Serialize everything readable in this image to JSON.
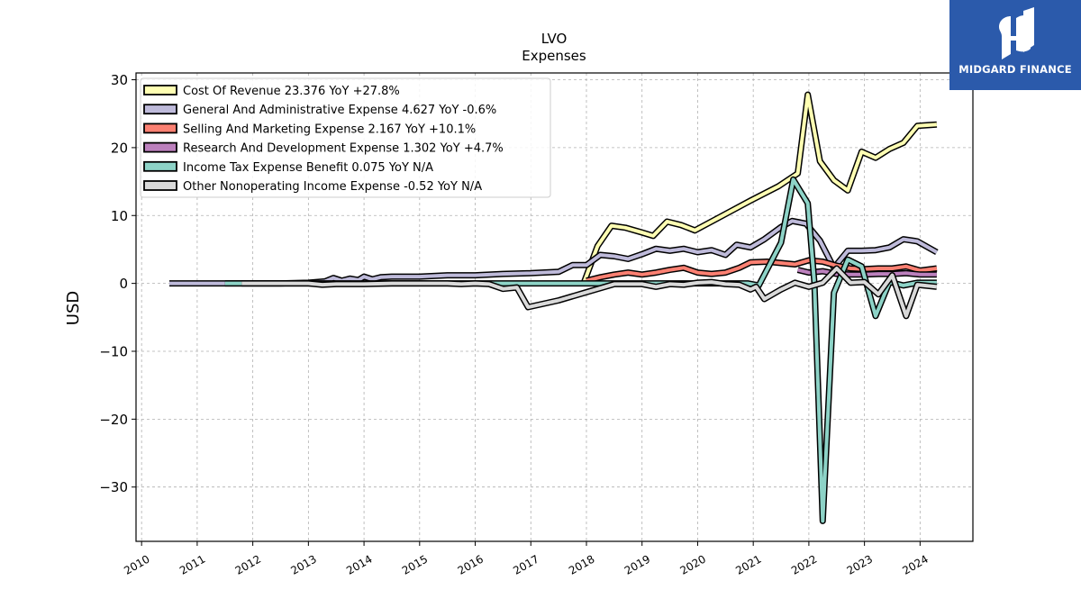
{
  "brand": {
    "name": "MIDGARD FINANCE",
    "color": "#2b5aab"
  },
  "chart_data": {
    "type": "line",
    "title": "LVO",
    "subtitle": "Expenses",
    "ylabel": "USD",
    "xlabel": "",
    "ylim": [
      -38,
      31
    ],
    "xlim": [
      2009.9,
      2024.95
    ],
    "grid": true,
    "legend_position": "top-left",
    "yticks": [
      -30,
      -20,
      -10,
      0,
      10,
      20,
      30
    ],
    "ytick_labels": [
      "−30",
      "−20",
      "−10",
      "0",
      "10",
      "20",
      "30"
    ],
    "xticks": [
      2010,
      2011,
      2012,
      2013,
      2014,
      2015,
      2016,
      2017,
      2018,
      2019,
      2020,
      2021,
      2022,
      2023,
      2024
    ],
    "xtick_labels": [
      "2010",
      "2011",
      "2012",
      "2013",
      "2014",
      "2015",
      "2016",
      "2017",
      "2018",
      "2019",
      "2020",
      "2021",
      "2022",
      "2023",
      "2024"
    ],
    "series": [
      {
        "name": "Cost Of Revenue",
        "legend": "Cost Of Revenue  23.376 YoY +27.8%",
        "color": "#ffffb3",
        "points": [
          [
            2017.95,
            0
          ],
          [
            2018.2,
            5.5
          ],
          [
            2018.45,
            8.5
          ],
          [
            2018.7,
            8.2
          ],
          [
            2019.0,
            7.5
          ],
          [
            2019.2,
            7.0
          ],
          [
            2019.45,
            9.1
          ],
          [
            2019.7,
            8.6
          ],
          [
            2019.95,
            7.8
          ],
          [
            2020.45,
            10.0
          ],
          [
            2020.95,
            12.2
          ],
          [
            2021.45,
            14.3
          ],
          [
            2021.8,
            16.2
          ],
          [
            2021.98,
            27.8
          ],
          [
            2022.2,
            18.0
          ],
          [
            2022.45,
            15.2
          ],
          [
            2022.7,
            13.7
          ],
          [
            2022.95,
            19.4
          ],
          [
            2023.2,
            18.5
          ],
          [
            2023.45,
            19.8
          ],
          [
            2023.7,
            20.7
          ],
          [
            2023.95,
            23.2
          ],
          [
            2024.3,
            23.4
          ]
        ]
      },
      {
        "name": "General And Administrative Expense",
        "legend": "General And Administrative Expense  4.627 YoY -0.6%",
        "color": "#bebada",
        "points": [
          [
            2010.5,
            0
          ],
          [
            2011.0,
            0
          ],
          [
            2011.5,
            0
          ],
          [
            2012.0,
            0
          ],
          [
            2012.5,
            0
          ],
          [
            2013.0,
            0.1
          ],
          [
            2013.3,
            0.3
          ],
          [
            2013.45,
            0.8
          ],
          [
            2013.6,
            0.4
          ],
          [
            2013.75,
            0.7
          ],
          [
            2013.9,
            0.5
          ],
          [
            2014.0,
            1.0
          ],
          [
            2014.15,
            0.6
          ],
          [
            2014.3,
            0.9
          ],
          [
            2014.5,
            1.0
          ],
          [
            2015.0,
            1.0
          ],
          [
            2015.5,
            1.2
          ],
          [
            2016.0,
            1.2
          ],
          [
            2016.5,
            1.4
          ],
          [
            2017.0,
            1.5
          ],
          [
            2017.5,
            1.7
          ],
          [
            2017.75,
            2.7
          ],
          [
            2018.0,
            2.7
          ],
          [
            2018.25,
            4.2
          ],
          [
            2018.5,
            4.0
          ],
          [
            2018.75,
            3.6
          ],
          [
            2019.0,
            4.3
          ],
          [
            2019.25,
            5.1
          ],
          [
            2019.5,
            4.8
          ],
          [
            2019.75,
            5.1
          ],
          [
            2020.0,
            4.6
          ],
          [
            2020.25,
            4.9
          ],
          [
            2020.5,
            4.2
          ],
          [
            2020.7,
            5.7
          ],
          [
            2020.95,
            5.3
          ],
          [
            2021.2,
            6.5
          ],
          [
            2021.5,
            8.3
          ],
          [
            2021.7,
            9.2
          ],
          [
            2021.95,
            8.8
          ],
          [
            2022.2,
            6.3
          ],
          [
            2022.45,
            2.3
          ],
          [
            2022.7,
            4.8
          ],
          [
            2022.95,
            4.8
          ],
          [
            2023.2,
            4.9
          ],
          [
            2023.45,
            5.3
          ],
          [
            2023.7,
            6.5
          ],
          [
            2023.95,
            6.2
          ],
          [
            2024.3,
            4.6
          ]
        ]
      },
      {
        "name": "Selling And Marketing Expense",
        "legend": "Selling And Marketing Expense  2.167 YoY +10.1%",
        "color": "#fb8072",
        "points": [
          [
            2018.0,
            0.4
          ],
          [
            2018.25,
            0.9
          ],
          [
            2018.5,
            1.3
          ],
          [
            2018.75,
            1.6
          ],
          [
            2019.0,
            1.3
          ],
          [
            2019.25,
            1.6
          ],
          [
            2019.5,
            2.0
          ],
          [
            2019.75,
            2.3
          ],
          [
            2020.0,
            1.6
          ],
          [
            2020.25,
            1.4
          ],
          [
            2020.5,
            1.6
          ],
          [
            2020.75,
            2.3
          ],
          [
            2020.95,
            3.1
          ],
          [
            2021.25,
            3.2
          ],
          [
            2021.5,
            3.0
          ],
          [
            2021.75,
            2.8
          ],
          [
            2022.0,
            3.4
          ],
          [
            2022.25,
            3.2
          ],
          [
            2022.5,
            2.6
          ],
          [
            2022.75,
            2.2
          ],
          [
            2023.0,
            2.1
          ],
          [
            2023.25,
            2.2
          ],
          [
            2023.5,
            2.2
          ],
          [
            2023.75,
            2.5
          ],
          [
            2024.0,
            1.9
          ],
          [
            2024.3,
            2.2
          ]
        ]
      },
      {
        "name": "Research And Development Expense",
        "legend": "Research And Development Expense  1.302 YoY +4.7%",
        "color": "#bc80bd",
        "points": [
          [
            2021.8,
            2.0
          ],
          [
            2022.0,
            1.6
          ],
          [
            2022.25,
            1.8
          ],
          [
            2022.5,
            1.4
          ],
          [
            2022.75,
            1.3
          ],
          [
            2023.0,
            1.3
          ],
          [
            2023.25,
            1.4
          ],
          [
            2023.5,
            1.4
          ],
          [
            2023.75,
            1.5
          ],
          [
            2024.0,
            1.3
          ],
          [
            2024.3,
            1.3
          ]
        ]
      },
      {
        "name": "Income Tax Expense Benefit",
        "legend": "Income Tax Expense Benefit  0.075 YoY N/A",
        "color": "#8dd3c7",
        "points": [
          [
            2011.5,
            0
          ],
          [
            2011.75,
            0
          ],
          [
            2012.0,
            0
          ],
          [
            2016.0,
            0
          ],
          [
            2017.0,
            0
          ],
          [
            2018.0,
            0
          ],
          [
            2019.0,
            0
          ],
          [
            2020.0,
            0
          ],
          [
            2020.5,
            0
          ],
          [
            2020.9,
            0
          ],
          [
            2021.1,
            -0.3
          ],
          [
            2021.5,
            6.0
          ],
          [
            2021.72,
            15.3
          ],
          [
            2021.98,
            11.8
          ],
          [
            2022.1,
            0
          ],
          [
            2022.25,
            -35.0
          ],
          [
            2022.45,
            -1.4
          ],
          [
            2022.7,
            3.5
          ],
          [
            2022.95,
            2.5
          ],
          [
            2023.2,
            -4.8
          ],
          [
            2023.45,
            0.2
          ],
          [
            2023.7,
            -0.3
          ],
          [
            2023.95,
            0.1
          ],
          [
            2024.3,
            0.1
          ]
        ]
      },
      {
        "name": "Other Nonoperating Income Expense",
        "legend": "Other Nonoperating Income Expense  -0.52 YoY N/A",
        "color": "#d9d9d9",
        "points": [
          [
            2011.8,
            0
          ],
          [
            2012.5,
            0
          ],
          [
            2013.0,
            0
          ],
          [
            2013.25,
            -0.2
          ],
          [
            2013.5,
            -0.1
          ],
          [
            2014.0,
            -0.1
          ],
          [
            2014.5,
            0
          ],
          [
            2015.0,
            0
          ],
          [
            2015.5,
            0
          ],
          [
            2015.75,
            -0.1
          ],
          [
            2016.0,
            0
          ],
          [
            2016.25,
            -0.1
          ],
          [
            2016.5,
            -0.8
          ],
          [
            2016.75,
            -0.6
          ],
          [
            2016.95,
            -3.5
          ],
          [
            2017.5,
            -2.5
          ],
          [
            2018.0,
            -1.3
          ],
          [
            2018.5,
            -0.1
          ],
          [
            2019.0,
            -0.1
          ],
          [
            2019.25,
            -0.5
          ],
          [
            2019.5,
            -0.1
          ],
          [
            2019.75,
            -0.2
          ],
          [
            2020.0,
            0.1
          ],
          [
            2020.25,
            0.2
          ],
          [
            2020.5,
            -0.1
          ],
          [
            2020.75,
            -0.2
          ],
          [
            2020.95,
            -0.9
          ],
          [
            2021.05,
            -0.5
          ],
          [
            2021.2,
            -2.3
          ],
          [
            2021.5,
            -0.9
          ],
          [
            2021.75,
            0.1
          ],
          [
            2022.0,
            -0.5
          ],
          [
            2022.25,
            0.1
          ],
          [
            2022.5,
            2.2
          ],
          [
            2022.75,
            0.1
          ],
          [
            2023.0,
            0.2
          ],
          [
            2023.25,
            -1.6
          ],
          [
            2023.5,
            1.2
          ],
          [
            2023.75,
            -4.8
          ],
          [
            2023.95,
            -0.2
          ],
          [
            2024.3,
            -0.5
          ]
        ]
      }
    ]
  }
}
